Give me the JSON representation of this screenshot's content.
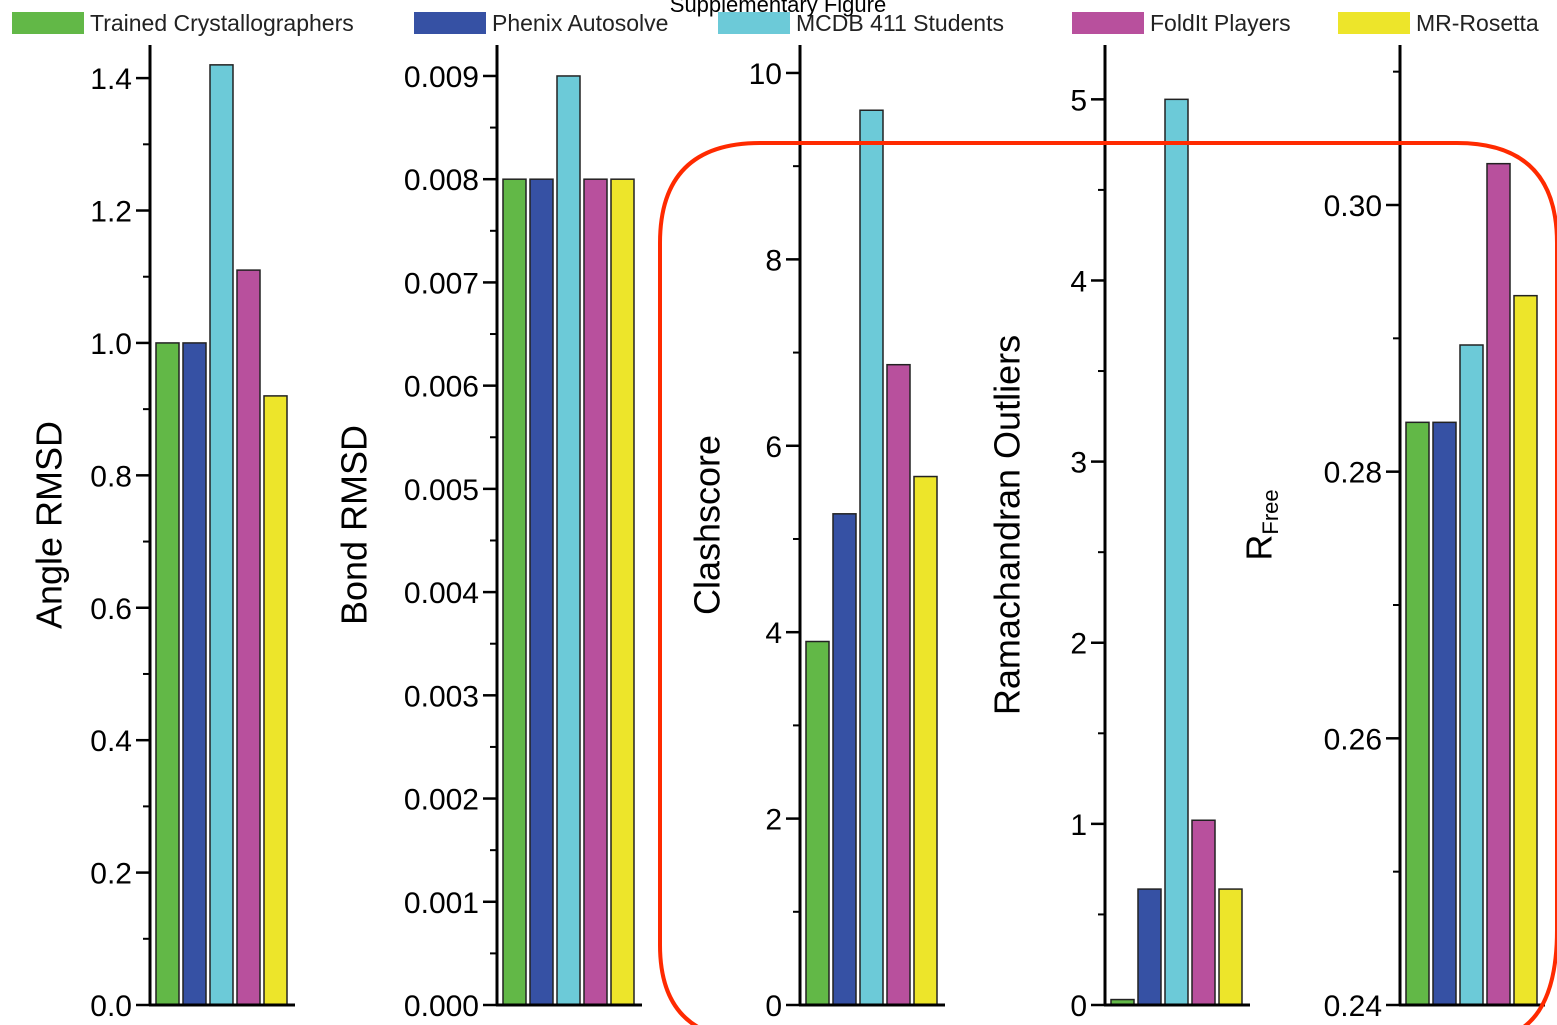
{
  "legend": {
    "items": [
      {
        "label": "Trained Crystallographers",
        "color": "#62b847"
      },
      {
        "label": "Phenix Autosolve",
        "color": "#3651a4"
      },
      {
        "label": "MCDB 411 Students",
        "color": "#6ccad8"
      },
      {
        "label": "FoldIt Players",
        "color": "#b8509d"
      },
      {
        "label": "MR-Rosetta",
        "color": "#ede52a"
      }
    ]
  },
  "caption": "Supplementary Figure",
  "highlight_color": "#ff2a00",
  "chart_data": [
    {
      "type": "bar",
      "ylabel": "Angle RMSD",
      "ylim": [
        0.0,
        1.45
      ],
      "yticks": [
        "0.0",
        "0.2",
        "0.4",
        "0.6",
        "0.8",
        "1.0",
        "1.2",
        "1.4"
      ],
      "series": [
        {
          "name": "Trained Crystallographers",
          "values": [
            1.0
          ]
        },
        {
          "name": "Phenix Autosolve",
          "values": [
            1.0
          ]
        },
        {
          "name": "MCDB 411 Students",
          "values": [
            1.42
          ]
        },
        {
          "name": "FoldIt Players",
          "values": [
            1.11
          ]
        },
        {
          "name": "MR-Rosetta",
          "values": [
            0.92
          ]
        }
      ]
    },
    {
      "type": "bar",
      "ylabel": "Bond RMSD",
      "ylim": [
        0.0,
        0.0093
      ],
      "yticks": [
        "0.000",
        "0.001",
        "0.002",
        "0.003",
        "0.004",
        "0.005",
        "0.006",
        "0.007",
        "0.008",
        "0.009"
      ],
      "series": [
        {
          "name": "Trained Crystallographers",
          "values": [
            0.008
          ]
        },
        {
          "name": "Phenix Autosolve",
          "values": [
            0.008
          ]
        },
        {
          "name": "MCDB 411 Students",
          "values": [
            0.009
          ]
        },
        {
          "name": "FoldIt Players",
          "values": [
            0.008
          ]
        },
        {
          "name": "MR-Rosetta",
          "values": [
            0.008
          ]
        }
      ]
    },
    {
      "type": "bar",
      "ylabel": "Clashscore",
      "ylim": [
        0,
        10.3
      ],
      "yticks": [
        "0",
        "2",
        "4",
        "6",
        "8",
        "10"
      ],
      "series": [
        {
          "name": "Trained Crystallographers",
          "values": [
            3.9
          ]
        },
        {
          "name": "Phenix Autosolve",
          "values": [
            5.27
          ]
        },
        {
          "name": "MCDB 411 Students",
          "values": [
            9.6
          ]
        },
        {
          "name": "FoldIt Players",
          "values": [
            6.87
          ]
        },
        {
          "name": "MR-Rosetta",
          "values": [
            5.67
          ]
        }
      ]
    },
    {
      "type": "bar",
      "ylabel": "Ramachandran Outliers",
      "ylim": [
        0,
        5.3
      ],
      "yticks": [
        "0",
        "1",
        "2",
        "3",
        "4",
        "5"
      ],
      "series": [
        {
          "name": "Trained Crystallographers",
          "values": [
            0.03
          ]
        },
        {
          "name": "Phenix Autosolve",
          "values": [
            0.64
          ]
        },
        {
          "name": "MCDB 411 Students",
          "values": [
            5.0
          ]
        },
        {
          "name": "FoldIt Players",
          "values": [
            1.02
          ]
        },
        {
          "name": "MR-Rosetta",
          "values": [
            0.64
          ]
        }
      ]
    },
    {
      "type": "bar",
      "ylabel": "R",
      "ylabel_subscript": "Free",
      "ylim": [
        0.24,
        0.312
      ],
      "yticks": [
        "0.24",
        "0.26",
        "0.28",
        "0.30"
      ],
      "series": [
        {
          "name": "Trained Crystallographers",
          "values": [
            0.2837
          ]
        },
        {
          "name": "Phenix Autosolve",
          "values": [
            0.2837
          ]
        },
        {
          "name": "MCDB 411 Students",
          "values": [
            0.2895
          ]
        },
        {
          "name": "FoldIt Players",
          "values": [
            0.3031
          ]
        },
        {
          "name": "MR-Rosetta",
          "values": [
            0.2932
          ]
        }
      ]
    }
  ]
}
